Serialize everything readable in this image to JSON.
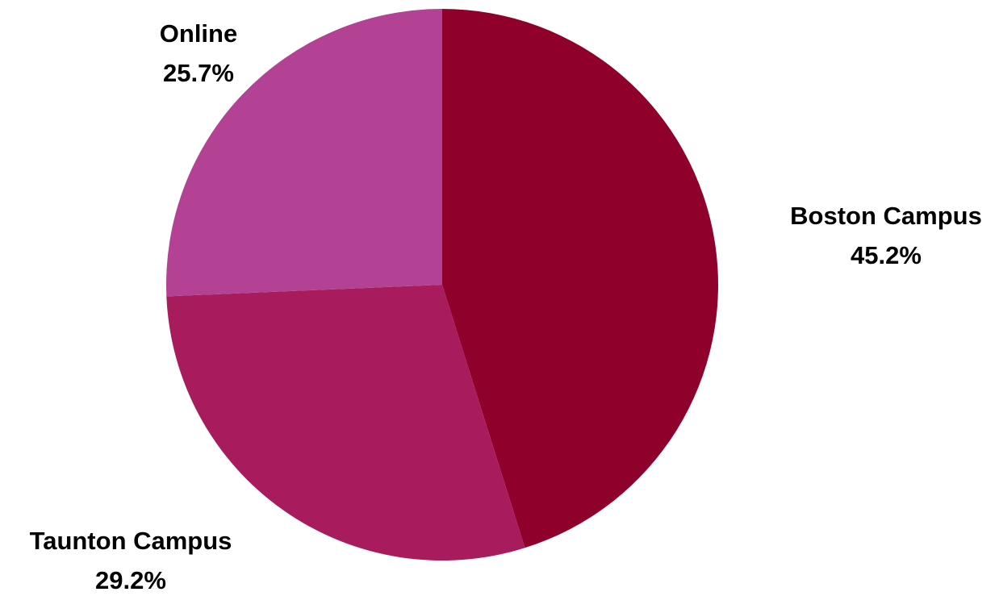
{
  "chart_data": {
    "type": "pie",
    "start_angle_deg": 0,
    "direction": "clockwise",
    "legend": "none",
    "slices": [
      {
        "name": "Boston Campus",
        "value": 45.2,
        "label": "45.2%",
        "color": "#8f002b"
      },
      {
        "name": "Taunton Campus",
        "value": 29.2,
        "label": "29.2%",
        "color": "#a81b5c"
      },
      {
        "name": "Online",
        "value": 25.7,
        "label": "25.7%",
        "color": "#b34294"
      }
    ]
  }
}
